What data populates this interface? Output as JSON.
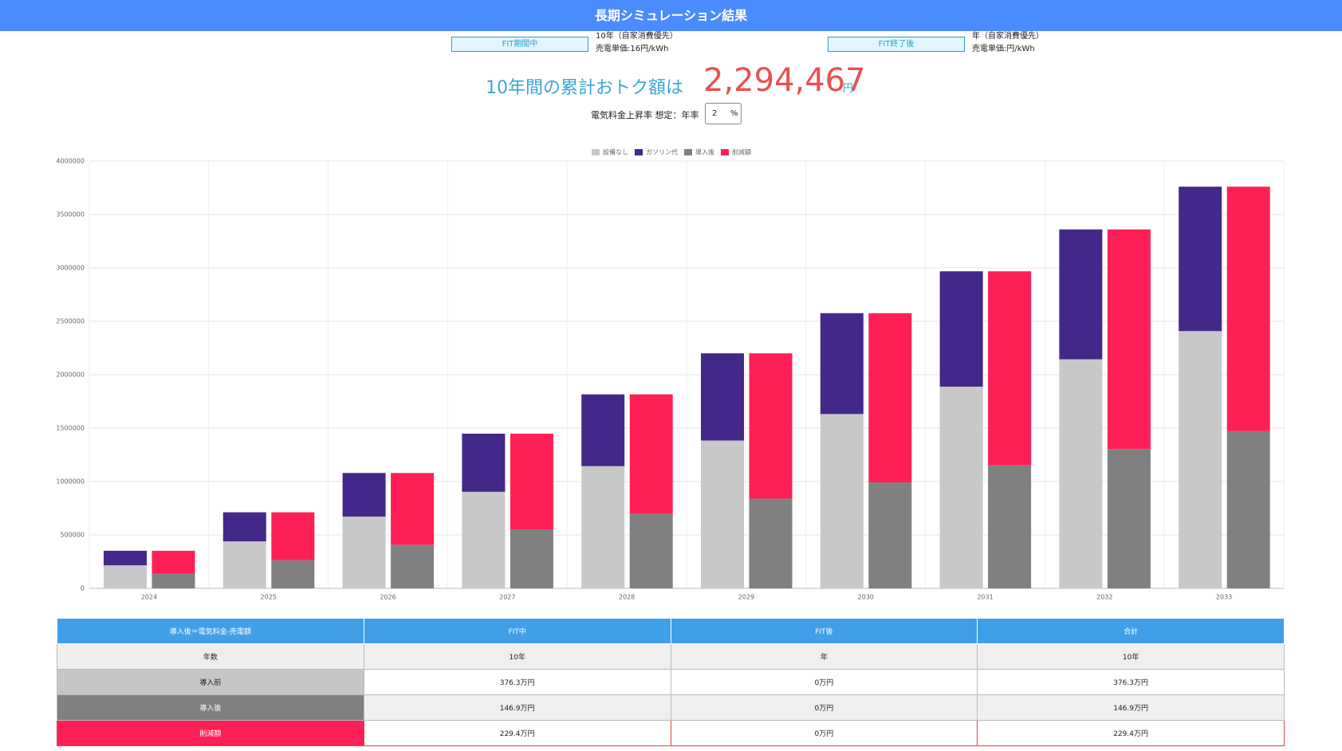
{
  "header": {
    "title": "長期シミュレーション結果"
  },
  "fit": [
    {
      "label": "FIT期間中",
      "lines": [
        "10年（自家消費優先）",
        "売電単価:16円/kWh"
      ]
    },
    {
      "label": "FIT終了後",
      "lines": [
        "年（自家消費優先）",
        "売電単価:円/kWh"
      ]
    }
  ],
  "summary": {
    "lead": "10年間の累計おトク額は",
    "amount": "2,294,467",
    "unit": "円"
  },
  "rate": {
    "label": "電気料金上昇率 想定：年率",
    "value": "2",
    "unit": "%"
  },
  "chart_data": {
    "type": "bar",
    "categories": [
      "2024",
      "2025",
      "2026",
      "2027",
      "2028",
      "2029",
      "2030",
      "2031",
      "2032",
      "2033"
    ],
    "series": [
      {
        "name": "設備なし",
        "color": "#c8c8c8",
        "values": [
          216000,
          440000,
          672000,
          904000,
          1144000,
          1384000,
          1632000,
          1888000,
          2144000,
          2408000
        ]
      },
      {
        "name": "ガソリン代",
        "color": "#432889",
        "values": [
          136000,
          272000,
          408000,
          544000,
          672000,
          816000,
          944000,
          1080000,
          1216000,
          1352000
        ]
      },
      {
        "name": "導入後",
        "color": "#808080",
        "values": [
          136000,
          264000,
          408000,
          552000,
          696000,
          840000,
          992000,
          1152000,
          1304000,
          1472000
        ]
      },
      {
        "name": "削減額",
        "color": "#ff1f57",
        "values": [
          216000,
          448000,
          672000,
          896000,
          1120000,
          1360000,
          1584000,
          1816000,
          2056000,
          2288000
        ]
      }
    ],
    "ylim": [
      0,
      4000000
    ],
    "yticks": [
      0,
      500000,
      1000000,
      1500000,
      2000000,
      2500000,
      3000000,
      3500000,
      4000000
    ],
    "grid": true,
    "legend": "top"
  },
  "table": {
    "header": [
      "導入後＝電気料金-売電額",
      "FIT中",
      "FIT後",
      "合計"
    ],
    "rows": [
      [
        "年数",
        "10年",
        "年",
        "10年"
      ],
      [
        "導入前",
        "376.3万円",
        "0万円",
        "376.3万円"
      ],
      [
        "導入後",
        "146.9万円",
        "0万円",
        "146.9万円"
      ],
      [
        "削減額",
        "229.4万円",
        "0万円",
        "229.4万円"
      ]
    ]
  }
}
